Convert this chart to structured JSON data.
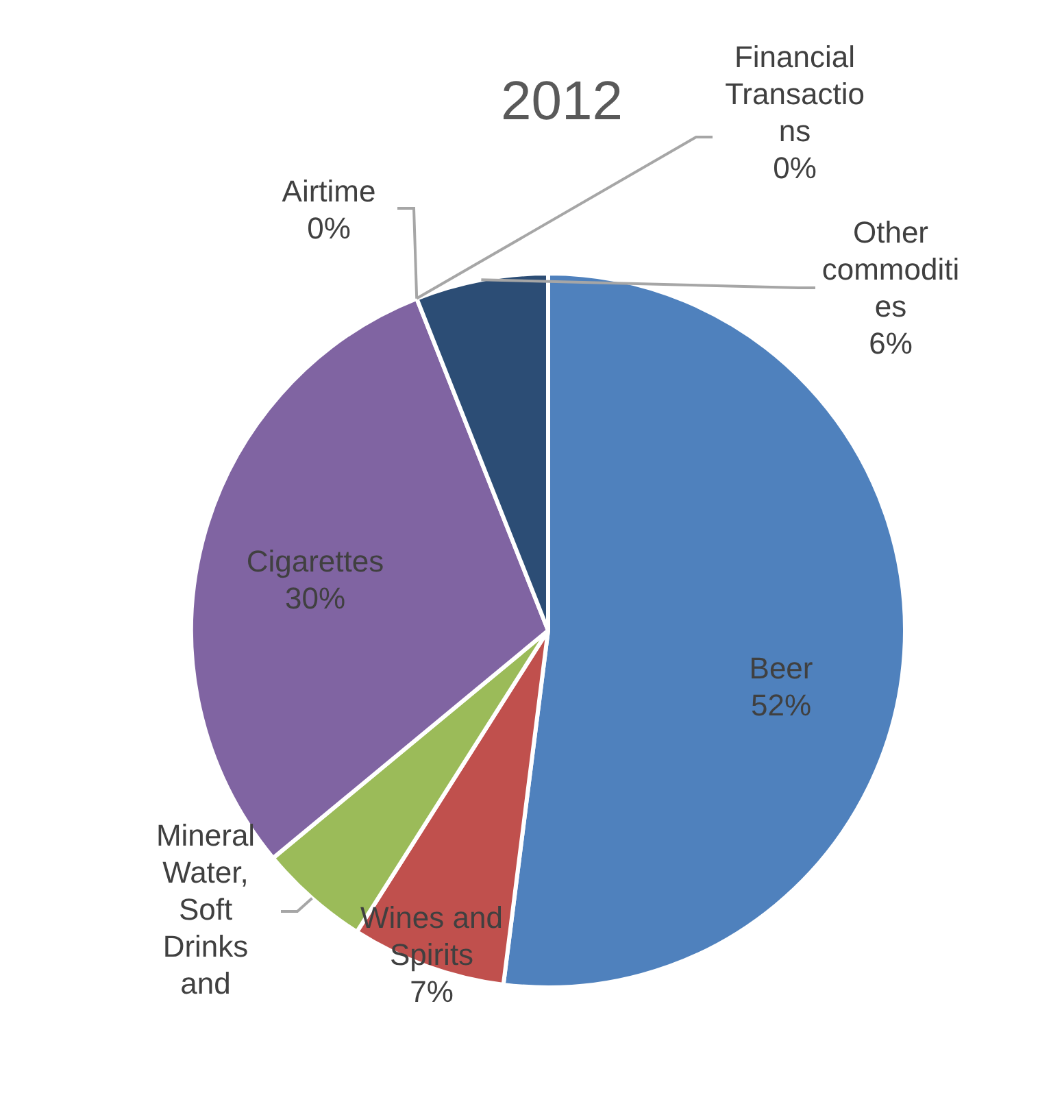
{
  "chart_data": {
    "type": "pie",
    "title": "2012",
    "categories": [
      "Beer",
      "Wines and Spirits",
      "Mineral Water, Soft Drinks and",
      "Cigarettes",
      "Airtime",
      "Financial Transactions",
      "Other commodities"
    ],
    "values": [
      52,
      7,
      5,
      30,
      0,
      0,
      6
    ],
    "value_labels": [
      "52%",
      "7%",
      null,
      "30%",
      "0%",
      "0%",
      "6%"
    ],
    "colors": [
      "#4f81bd",
      "#c0504d",
      "#9bbb59",
      "#8064a2",
      "#4bacc6",
      "#f79646",
      "#2c4d75"
    ],
    "legend": false
  }
}
